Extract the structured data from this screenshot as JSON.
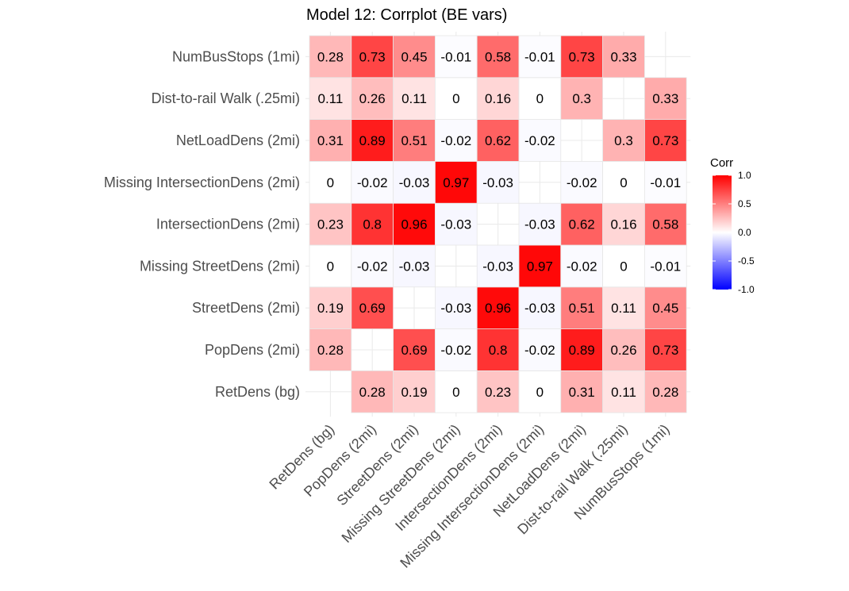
{
  "chart_data": {
    "type": "heatmap",
    "title": "Model 12: Corrplot (BE vars)",
    "variables": [
      "RetDens (bg)",
      "PopDens (2mi)",
      "StreetDens (2mi)",
      "Missing StreetDens (2mi)",
      "IntersectionDens (2mi)",
      "Missing IntersectionDens (2mi)",
      "NetLoadDens (2mi)",
      "Dist-to-rail Walk (.25mi)",
      "NumBusStops (1mi)"
    ],
    "matrix": [
      [
        null,
        0.28,
        0.19,
        0,
        0.23,
        0,
        0.31,
        0.11,
        0.28
      ],
      [
        0.28,
        null,
        0.69,
        -0.02,
        0.8,
        -0.02,
        0.89,
        0.26,
        0.73
      ],
      [
        0.19,
        0.69,
        null,
        -0.03,
        0.96,
        -0.03,
        0.51,
        0.11,
        0.45
      ],
      [
        0,
        -0.02,
        -0.03,
        null,
        -0.03,
        0.97,
        -0.02,
        0,
        -0.01
      ],
      [
        0.23,
        0.8,
        0.96,
        -0.03,
        null,
        -0.03,
        0.62,
        0.16,
        0.58
      ],
      [
        0,
        -0.02,
        -0.03,
        0.97,
        -0.03,
        null,
        -0.02,
        0,
        -0.01
      ],
      [
        0.31,
        0.89,
        0.51,
        -0.02,
        0.62,
        -0.02,
        null,
        0.3,
        0.73
      ],
      [
        0.11,
        0.26,
        0.11,
        0,
        0.16,
        0,
        0.3,
        null,
        0.33
      ],
      [
        0.28,
        0.73,
        0.45,
        -0.01,
        0.58,
        -0.01,
        0.73,
        0.33,
        null
      ]
    ],
    "value_range": [
      -1,
      1
    ],
    "legend": {
      "title": "Corr",
      "ticks": [
        "1.0",
        "0.5",
        "0.0",
        "-0.5",
        "-1.0"
      ],
      "tick_values": [
        1.0,
        0.5,
        0.0,
        -0.5,
        -1.0
      ],
      "placement": "right"
    },
    "colors": {
      "low": "#0000ff",
      "mid": "#ffffff",
      "high": "#ff0000"
    },
    "grid": true
  }
}
